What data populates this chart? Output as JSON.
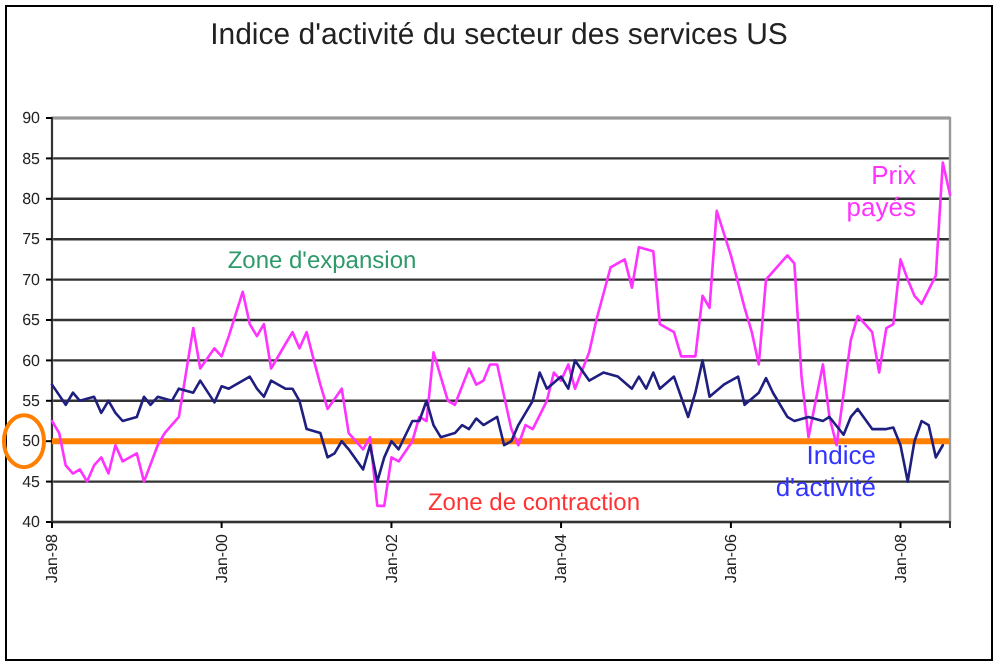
{
  "chart_data": {
    "type": "line",
    "title": "Indice d'activité du secteur des services US",
    "xlim": [
      "1998-01",
      "2008-08"
    ],
    "ylim": [
      40,
      90
    ],
    "xticks": [
      {
        "value": "1998-01",
        "label": "Jan-98"
      },
      {
        "value": "2000-01",
        "label": "Jan-00"
      },
      {
        "value": "2002-01",
        "label": "Jan-02"
      },
      {
        "value": "2004-01",
        "label": "Jan-04"
      },
      {
        "value": "2006-01",
        "label": "Jan-06"
      },
      {
        "value": "2008-01",
        "label": "Jan-08"
      }
    ],
    "yticks": [
      40,
      45,
      50,
      55,
      60,
      65,
      70,
      75,
      80,
      85,
      90
    ],
    "grid": "y",
    "legend": false,
    "marker": "none",
    "line_style": "solid",
    "ref_lines": [
      {
        "axis": "y",
        "value": 50,
        "color": "#ff8000"
      }
    ],
    "annotations": [
      "Zone d'expansion",
      "Zone de contraction"
    ],
    "series": [
      {
        "name": "Prix payés",
        "color": "#ff33ff",
        "x": [
          "1998-01",
          "1998-02",
          "1998-03",
          "1998-04",
          "1998-05",
          "1998-06",
          "1998-07",
          "1998-08",
          "1998-09",
          "1998-10",
          "1998-11",
          "1999-01",
          "1999-02",
          "1999-04",
          "1999-05",
          "1999-07",
          "1999-08",
          "1999-09",
          "1999-10",
          "1999-12",
          "2000-01",
          "2000-02",
          "2000-04",
          "2000-05",
          "2000-06",
          "2000-07",
          "2000-08",
          "2000-10",
          "2000-11",
          "2000-12",
          "2001-01",
          "2001-02",
          "2001-03",
          "2001-04",
          "2001-06",
          "2001-07",
          "2001-09",
          "2001-10",
          "2001-11",
          "2001-12",
          "2002-01",
          "2002-02",
          "2002-04",
          "2002-05",
          "2002-06",
          "2002-07",
          "2002-09",
          "2002-10",
          "2002-12",
          "2003-01",
          "2003-02",
          "2003-03",
          "2003-04",
          "2003-06",
          "2003-07",
          "2003-08",
          "2003-09",
          "2003-11",
          "2003-12",
          "2004-01",
          "2004-02",
          "2004-03",
          "2004-05",
          "2004-06",
          "2004-08",
          "2004-10",
          "2004-11",
          "2004-12",
          "2005-02",
          "2005-03",
          "2005-05",
          "2005-06",
          "2005-08",
          "2005-09",
          "2005-10",
          "2005-11",
          "2006-01",
          "2006-03",
          "2006-04",
          "2006-05",
          "2006-06",
          "2006-09",
          "2006-10",
          "2006-11",
          "2006-12",
          "2007-01",
          "2007-02",
          "2007-03",
          "2007-04",
          "2007-06",
          "2007-07",
          "2007-09",
          "2007-10",
          "2007-11",
          "2007-12",
          "2008-01",
          "2008-02",
          "2008-03",
          "2008-04",
          "2008-06",
          "2008-07",
          "2008-08"
        ],
        "values": [
          52.5,
          51,
          47,
          46,
          46.5,
          45,
          47,
          48,
          46,
          49.5,
          47.5,
          48.5,
          45,
          49.5,
          51,
          53,
          58.5,
          64,
          59,
          61.5,
          60.5,
          63,
          68.5,
          64.5,
          63,
          64.5,
          59,
          62,
          63.5,
          61.5,
          63.5,
          60,
          57,
          54,
          56.5,
          51,
          49,
          50.5,
          42,
          42,
          48,
          47.5,
          50,
          53,
          52.5,
          61,
          55,
          54.5,
          59,
          57,
          57.5,
          59.5,
          59.5,
          51.5,
          49.5,
          52,
          51.5,
          55,
          58.5,
          57.5,
          59.5,
          56.5,
          61,
          65,
          71.5,
          72.5,
          69,
          74,
          73.5,
          64.5,
          63.5,
          60.5,
          60.5,
          68,
          66.5,
          78.5,
          73,
          66.5,
          63.5,
          59.5,
          70,
          73,
          72,
          58,
          50.5,
          55,
          59.5,
          53,
          49.5,
          62.5,
          65.5,
          63.5,
          58.5,
          64,
          64.5,
          72.5,
          70,
          68,
          67,
          70.5,
          84.5,
          80.5
        ]
      },
      {
        "name": "Indice d'activité",
        "color": "#1f1f80",
        "x": [
          "1998-01",
          "1998-03",
          "1998-04",
          "1998-05",
          "1998-07",
          "1998-08",
          "1998-09",
          "1998-10",
          "1998-11",
          "1999-01",
          "1999-02",
          "1999-03",
          "1999-04",
          "1999-06",
          "1999-07",
          "1999-09",
          "1999-10",
          "1999-12",
          "2000-01",
          "2000-02",
          "2000-04",
          "2000-05",
          "2000-06",
          "2000-07",
          "2000-08",
          "2000-10",
          "2000-11",
          "2000-12",
          "2001-01",
          "2001-03",
          "2001-04",
          "2001-05",
          "2001-06",
          "2001-07",
          "2001-09",
          "2001-10",
          "2001-11",
          "2001-12",
          "2002-01",
          "2002-02",
          "2002-04",
          "2002-05",
          "2002-06",
          "2002-07",
          "2002-08",
          "2002-10",
          "2002-11",
          "2002-12",
          "2003-01",
          "2003-02",
          "2003-04",
          "2003-05",
          "2003-06",
          "2003-07",
          "2003-09",
          "2003-10",
          "2003-11",
          "2004-01",
          "2004-02",
          "2004-03",
          "2004-05",
          "2004-07",
          "2004-09",
          "2004-11",
          "2004-12",
          "2005-01",
          "2005-02",
          "2005-03",
          "2005-05",
          "2005-07",
          "2005-08",
          "2005-09",
          "2005-10",
          "2005-12",
          "2006-02",
          "2006-03",
          "2006-05",
          "2006-06",
          "2006-07",
          "2006-09",
          "2006-10",
          "2006-12",
          "2007-02",
          "2007-03",
          "2007-05",
          "2007-06",
          "2007-07",
          "2007-09",
          "2007-11",
          "2007-12",
          "2008-01",
          "2008-02",
          "2008-03",
          "2008-04",
          "2008-05",
          "2008-06",
          "2008-07"
        ],
        "values": [
          57,
          54.5,
          56,
          55,
          55.5,
          53.5,
          55,
          53.5,
          52.5,
          53,
          55.5,
          54.5,
          55.5,
          55,
          56.5,
          56,
          57.5,
          54.8,
          56.8,
          56.5,
          57.5,
          58,
          56.5,
          55.5,
          57.5,
          56.5,
          56.5,
          55,
          51.5,
          51,
          48,
          48.5,
          50,
          49,
          46.5,
          49.5,
          45,
          48,
          50,
          49,
          52.5,
          52.5,
          55,
          52,
          50.5,
          51,
          52,
          51.5,
          52.8,
          52,
          53,
          49.5,
          50,
          52,
          55,
          58.5,
          56.5,
          58,
          56.5,
          60,
          57.5,
          58.5,
          58,
          56.5,
          58,
          56.5,
          58.5,
          56.5,
          58,
          53,
          56,
          60,
          55.5,
          57,
          58,
          54.5,
          56,
          57.8,
          56,
          53,
          52.5,
          53,
          52.5,
          53,
          50.8,
          53,
          54,
          51.5,
          51.5,
          51.7,
          49.5,
          45,
          50,
          52.5,
          52,
          48,
          49.5
        ]
      }
    ]
  }
}
